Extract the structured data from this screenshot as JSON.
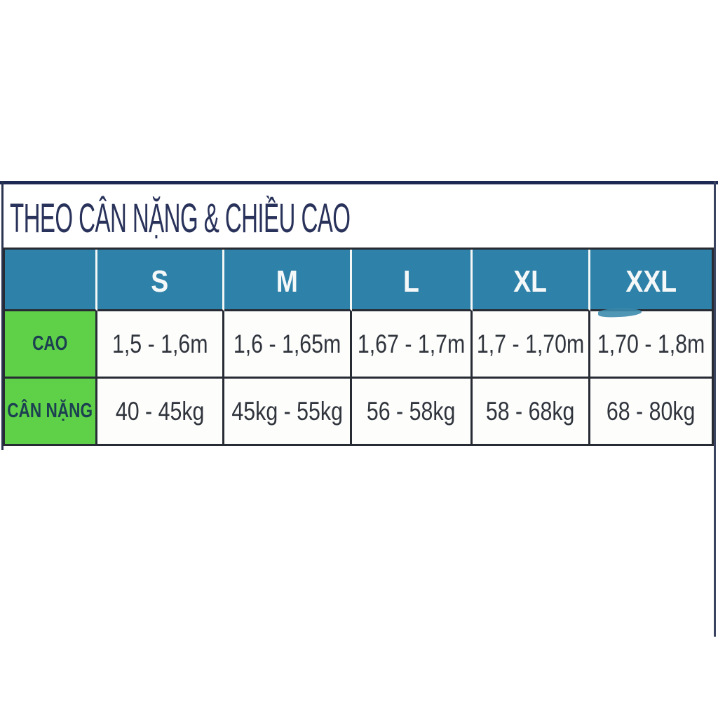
{
  "panel": {
    "title": "THEO CÂN NẶNG & CHIỀU CAO"
  },
  "size_table": {
    "corner": "",
    "columns": [
      "S",
      "M",
      "L",
      "XL",
      "XXL"
    ],
    "rows": [
      {
        "label": "CAO",
        "values": [
          "1,5 - 1,6m",
          "1,6 - 1,65m",
          "1,67 - 1,7m",
          "1,7 - 1,70m",
          "1,70 - 1,8m"
        ]
      },
      {
        "label": "CÂN NẶNG",
        "values": [
          "40 - 45kg",
          "45kg - 55kg",
          "56 - 58kg",
          "58 - 68kg",
          "68 - 80kg"
        ]
      }
    ]
  },
  "chart_data": {
    "type": "table",
    "title": "THEO CÂN NẶNG & CHIỀU CAO",
    "columns": [
      "",
      "S",
      "M",
      "L",
      "XL",
      "XXL"
    ],
    "rows": [
      [
        "CAO",
        "1,5 - 1,6m",
        "1,6 - 1,65m",
        "1,67 - 1,7m",
        "1,7 - 1,70m",
        "1,70 - 1,8m"
      ],
      [
        "CÂN NẶNG",
        "40 - 45kg",
        "45kg - 55kg",
        "56 - 58kg",
        "58 - 68kg",
        "68 - 80kg"
      ]
    ],
    "notes": "Vietnamese apparel size chart: CAO = height, CÂN NẶNG = weight"
  },
  "colors": {
    "header_teal": "#2e81a8",
    "label_green": "#5fd149",
    "title_navy": "#29325a",
    "grid_dark": "#272b33",
    "outer_border_navy": "#1e2a52",
    "header_text": "#f5f8f8",
    "body_text": "#30343c",
    "label_text": "#1c3f51"
  }
}
